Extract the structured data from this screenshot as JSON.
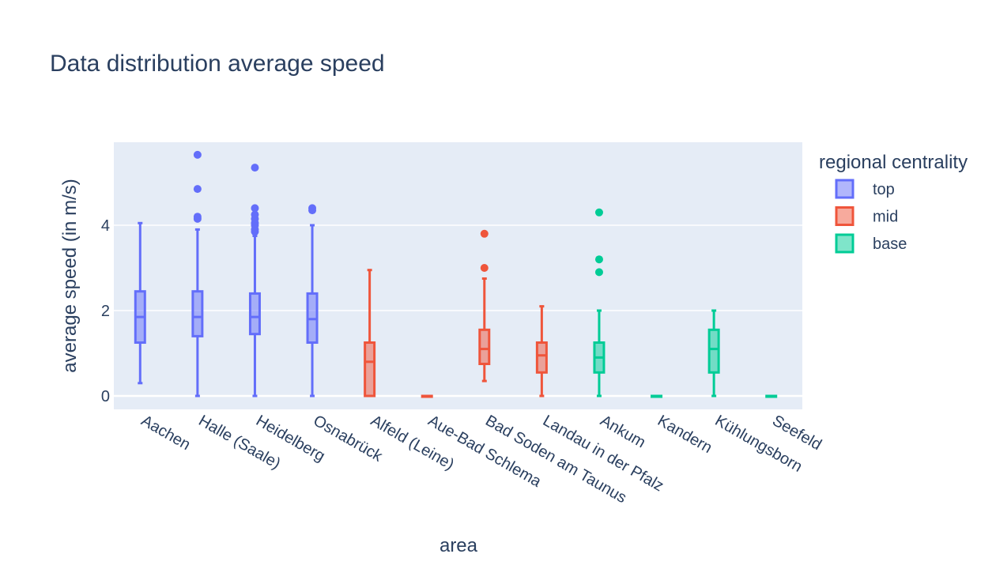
{
  "chart_data": {
    "type": "box",
    "title": "Data distribution average speed",
    "xlabel": "area",
    "ylabel": "average speed (in m/s)",
    "yticks": [
      0,
      2,
      4
    ],
    "ylim": [
      -0.3,
      6.0
    ],
    "grid": true,
    "legend": {
      "title": "regional centrality",
      "placement": "right"
    },
    "colors": {
      "top": "#636efa",
      "mid": "#ef553b",
      "base": "#00cc96",
      "plot_bg": "#e5ecf6",
      "text": "#2a3f5f"
    },
    "categories": [
      "Aachen",
      "Halle (Saale)",
      "Heidelberg",
      "Osnabrück",
      "Alfeld (Leine)",
      "Aue-Bad Schlema",
      "Bad Soden am Taunus",
      "Landau in der Pfalz",
      "Ankum",
      "Kandern",
      "Kühlungsborn",
      "Seefeld"
    ],
    "series": [
      {
        "name": "top",
        "color": "#636efa",
        "boxes": [
          {
            "category": "Aachen",
            "min": 0.3,
            "q1": 1.25,
            "median": 1.85,
            "q3": 2.45,
            "max": 4.05,
            "outliers": []
          },
          {
            "category": "Halle (Saale)",
            "min": 0.0,
            "q1": 1.4,
            "median": 1.85,
            "q3": 2.45,
            "max": 3.9,
            "outliers": [
              4.15,
              4.2,
              4.85,
              5.65
            ]
          },
          {
            "category": "Heidelberg",
            "min": 0.0,
            "q1": 1.45,
            "median": 1.85,
            "q3": 2.4,
            "max": 3.75,
            "outliers": [
              3.85,
              3.9,
              4.0,
              4.05,
              4.15,
              4.25,
              4.4,
              5.35
            ]
          },
          {
            "category": "Osnabrück",
            "min": 0.0,
            "q1": 1.25,
            "median": 1.8,
            "q3": 2.4,
            "max": 4.0,
            "outliers": [
              4.35,
              4.4
            ]
          }
        ]
      },
      {
        "name": "mid",
        "color": "#ef553b",
        "boxes": [
          {
            "category": "Alfeld (Leine)",
            "min": 0.0,
            "q1": 0.0,
            "median": 0.8,
            "q3": 1.25,
            "max": 2.95,
            "outliers": []
          },
          {
            "category": "Aue-Bad Schlema",
            "min": 0.0,
            "q1": 0.0,
            "median": 0.0,
            "q3": 0.0,
            "max": 0.0,
            "outliers": []
          },
          {
            "category": "Bad Soden am Taunus",
            "min": 0.35,
            "q1": 0.75,
            "median": 1.1,
            "q3": 1.55,
            "max": 2.75,
            "outliers": [
              3.0,
              3.8
            ]
          },
          {
            "category": "Landau in der Pfalz",
            "min": 0.0,
            "q1": 0.55,
            "median": 0.95,
            "q3": 1.25,
            "max": 2.1,
            "outliers": []
          }
        ]
      },
      {
        "name": "base",
        "color": "#00cc96",
        "boxes": [
          {
            "category": "Ankum",
            "min": 0.0,
            "q1": 0.55,
            "median": 0.9,
            "q3": 1.25,
            "max": 2.0,
            "outliers": [
              2.9,
              3.2,
              4.3
            ]
          },
          {
            "category": "Kandern",
            "min": 0.0,
            "q1": 0.0,
            "median": 0.0,
            "q3": 0.0,
            "max": 0.0,
            "outliers": []
          },
          {
            "category": "Kühlungsborn",
            "min": 0.0,
            "q1": 0.55,
            "median": 1.1,
            "q3": 1.55,
            "max": 2.0,
            "outliers": []
          },
          {
            "category": "Seefeld",
            "min": 0.0,
            "q1": 0.0,
            "median": 0.0,
            "q3": 0.0,
            "max": 0.0,
            "outliers": []
          }
        ]
      }
    ]
  }
}
